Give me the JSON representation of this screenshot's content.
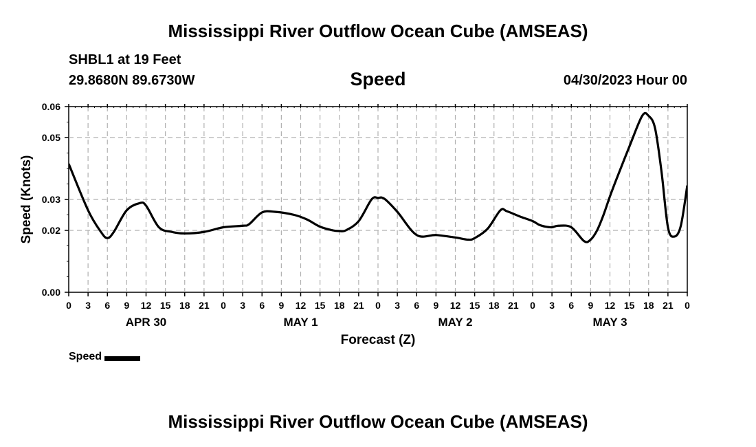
{
  "page": {
    "title": "Mississippi River Outflow Ocean Cube (AMSEAS)",
    "footer_title": "Mississippi River Outflow Ocean Cube (AMSEAS)",
    "station": "SHBL1 at 19 Feet",
    "coords": "29.8680N  89.6730W",
    "variable": "Speed",
    "datetime": "04/30/2023 Hour 00"
  },
  "chart_data": {
    "type": "line",
    "title": "Speed",
    "xlabel": "Forecast (Z)",
    "ylabel": "Speed (Knots)",
    "xlim": [
      0,
      96
    ],
    "ylim": [
      0,
      0.06
    ],
    "grid": true,
    "legend_position": "bottom-left",
    "x_tick_labels": [
      "0",
      "3",
      "6",
      "9",
      "12",
      "15",
      "18",
      "21",
      "0",
      "3",
      "6",
      "9",
      "12",
      "15",
      "18",
      "21",
      "0",
      "3",
      "6",
      "9",
      "12",
      "15",
      "18",
      "21",
      "0",
      "3",
      "6",
      "9",
      "12",
      "15",
      "18",
      "21",
      "0"
    ],
    "y_ticks": [
      0,
      0.02,
      0.03,
      0.05,
      0.06
    ],
    "y_tick_labels": [
      "0.00",
      "0.02",
      "0.03",
      "0.05",
      "0.06"
    ],
    "day_labels": [
      {
        "label": "APR 30",
        "hour": 12
      },
      {
        "label": "MAY 1",
        "hour": 36
      },
      {
        "label": "MAY 2",
        "hour": 60
      },
      {
        "label": "MAY 3",
        "hour": 84
      }
    ],
    "series": [
      {
        "name": "Speed",
        "color": "#000000",
        "x": [
          0,
          3,
          5,
          6,
          7,
          9,
          11,
          12,
          14,
          16,
          18,
          21,
          24,
          27,
          28,
          30,
          32,
          35,
          37,
          39,
          41,
          42,
          43,
          45,
          47,
          48,
          49,
          51,
          54,
          57,
          60,
          62,
          63,
          65,
          67,
          68,
          70,
          72,
          73,
          74,
          75,
          76,
          78,
          80,
          81,
          82,
          83,
          84,
          85,
          87,
          89,
          90,
          91,
          92,
          93,
          94,
          95,
          96
        ],
        "y": [
          0.0415,
          0.0265,
          0.0195,
          0.0175,
          0.0195,
          0.0265,
          0.0288,
          0.028,
          0.021,
          0.0195,
          0.019,
          0.0195,
          0.021,
          0.0215,
          0.022,
          0.0258,
          0.026,
          0.025,
          0.0235,
          0.0212,
          0.02,
          0.0198,
          0.02,
          0.023,
          0.03,
          0.0305,
          0.0302,
          0.026,
          0.0185,
          0.0185,
          0.0177,
          0.017,
          0.0175,
          0.0205,
          0.0265,
          0.0262,
          0.0245,
          0.023,
          0.0218,
          0.0212,
          0.021,
          0.0215,
          0.021,
          0.0165,
          0.017,
          0.02,
          0.025,
          0.031,
          0.0365,
          0.047,
          0.057,
          0.057,
          0.053,
          0.039,
          0.021,
          0.018,
          0.0215,
          0.0345
        ]
      }
    ]
  },
  "legend": {
    "label": "Speed"
  }
}
